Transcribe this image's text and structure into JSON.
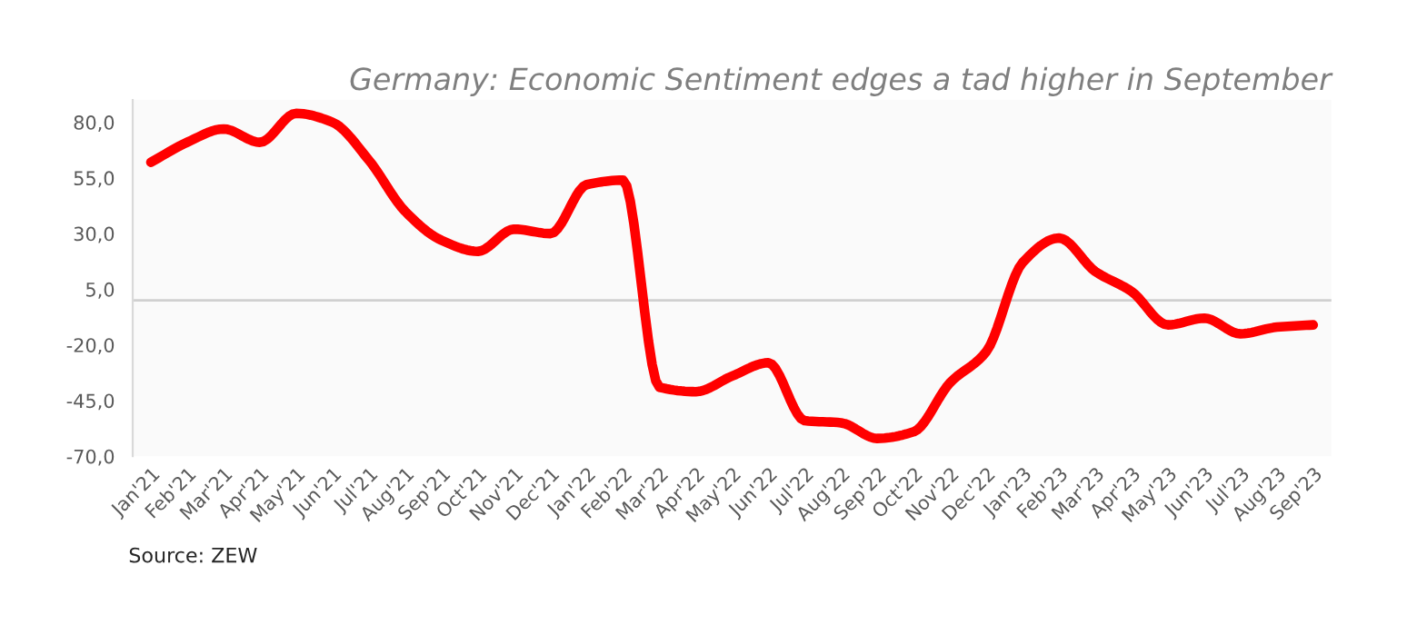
{
  "chart_data": {
    "type": "line",
    "title": "Germany: Economic Sentiment edges a tad higher in September",
    "categories": [
      "Jan'21",
      "Feb'21",
      "Mar'21",
      "Apr'21",
      "May'21",
      "Jun'21",
      "Jul'21",
      "Aug'21",
      "Sep'21",
      "Oct'21",
      "Nov'21",
      "Dec'21",
      "Jan'22",
      "Feb'22",
      "Mar'22",
      "Apr'22",
      "May'22",
      "Jun'22",
      "Jul'22",
      "Aug'22",
      "Sep'22",
      "Oct'22",
      "Nov'22",
      "Dec'22",
      "Jan'23",
      "Feb'23",
      "Mar'23",
      "Apr'23",
      "May'23",
      "Jun'23",
      "Jul'23",
      "Aug'23",
      "Sep'23"
    ],
    "series": [
      {
        "color": "#ff0000",
        "values": [
          62,
          71,
          77,
          71,
          84,
          80,
          63,
          40,
          27,
          22,
          32,
          30,
          52,
          54,
          -39,
          -41,
          -34,
          -28,
          -54,
          -55,
          -62,
          -59,
          -37,
          -23,
          17,
          28,
          13,
          4,
          -11,
          -8,
          -15,
          -12,
          -11
        ]
      }
    ],
    "ylim": [
      -70,
      90
    ],
    "yticks": [
      {
        "value": 80,
        "label": "80,0"
      },
      {
        "value": 55,
        "label": "55,0"
      },
      {
        "value": 30,
        "label": "30,0"
      },
      {
        "value": 5,
        "label": "5,0"
      },
      {
        "value": -20,
        "label": "-20,0"
      },
      {
        "value": -45,
        "label": "-45,0"
      },
      {
        "value": -70,
        "label": "-70,0"
      }
    ],
    "ref_lines": [
      {
        "axis": "y",
        "value": 0,
        "label": null,
        "color": "#d0d0d0"
      }
    ],
    "grid": false,
    "legend": false,
    "marker": "none",
    "line_style": "solid",
    "annotations": [
      "Source: ZEW"
    ]
  }
}
